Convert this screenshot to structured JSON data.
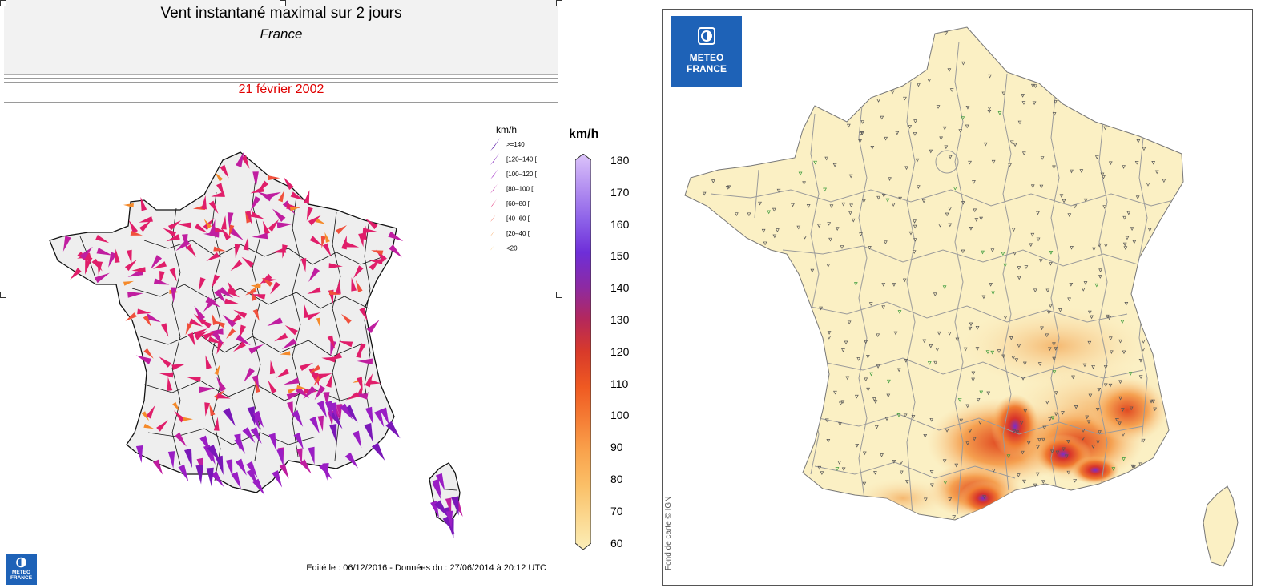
{
  "left": {
    "title": "Vent instantané maximal sur 2 jours",
    "subtitle": "France",
    "date": "21 février 2002",
    "footer": "Edité le : 06/12/2016 - Données du : 27/06/2014 à 20:12 UTC",
    "legend_title": "km/h",
    "legend_items": [
      {
        "label": ">=140",
        "color": "#5b1aa8"
      },
      {
        "label": "[120–140 [",
        "color": "#7a18b8"
      },
      {
        "label": "[100–120 [",
        "color": "#9a1ec4"
      },
      {
        "label": "[80–100 [",
        "color": "#c01ea0"
      },
      {
        "label": "[60–80 [",
        "color": "#e01e6a"
      },
      {
        "label": "[40–60 [",
        "color": "#f0503c"
      },
      {
        "label": "[20–40 [",
        "color": "#f58a2a"
      },
      {
        "label": "<20",
        "color": "#f8b848"
      }
    ],
    "logo_line1": "METEO",
    "logo_line2": "FRANCE"
  },
  "colorbar": {
    "unit": "km/h",
    "ticks": [
      "180",
      "170",
      "160",
      "150",
      "140",
      "130",
      "120",
      "110",
      "100",
      "90",
      "80",
      "70",
      "60"
    ],
    "stops": [
      "#fbeeb8",
      "#fbd890",
      "#fac068",
      "#f9a24c",
      "#f57d35",
      "#ef5a22",
      "#d83a2a",
      "#b5285a",
      "#8e2aa0",
      "#6e2ed8",
      "#8c60e8",
      "#b28ef0",
      "#dcc4fa"
    ]
  },
  "right": {
    "logo_line1": "METEO",
    "logo_line2": "FRANCE",
    "copyright": "Fond de carte © IGN"
  }
}
